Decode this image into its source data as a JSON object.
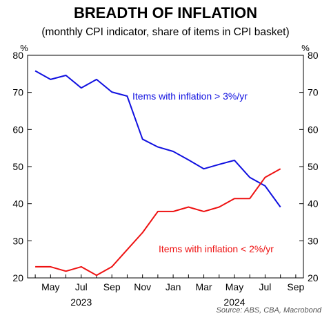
{
  "chart_data": {
    "type": "line",
    "title": "BREADTH OF INFLATION",
    "subtitle": "(monthly CPI indicator, share of items in CPI basket)",
    "y_unit": "%",
    "ylim": [
      20,
      80
    ],
    "yticks": [
      20,
      30,
      40,
      50,
      60,
      70,
      80
    ],
    "x": [
      "2023-04",
      "2023-05",
      "2023-06",
      "2023-07",
      "2023-08",
      "2023-09",
      "2023-10",
      "2023-11",
      "2023-12",
      "2024-01",
      "2024-02",
      "2024-03",
      "2024-04",
      "2024-05",
      "2024-06",
      "2024-07",
      "2024-08"
    ],
    "xlim": [
      "2023-04",
      "2024-09"
    ],
    "xticks": [
      {
        "month": "2023-05",
        "label": "May"
      },
      {
        "month": "2023-07",
        "label": "Jul"
      },
      {
        "month": "2023-09",
        "label": "Sep"
      },
      {
        "month": "2023-11",
        "label": "Nov"
      },
      {
        "month": "2024-01",
        "label": "Jan"
      },
      {
        "month": "2024-03",
        "label": "Mar"
      },
      {
        "month": "2024-05",
        "label": "May"
      },
      {
        "month": "2024-07",
        "label": "Jul"
      },
      {
        "month": "2024-09",
        "label": "Sep"
      }
    ],
    "year_labels": [
      {
        "month": "2023-07",
        "label": "2023"
      },
      {
        "month": "2024-05",
        "label": "2024"
      }
    ],
    "series": [
      {
        "name": "Items with inflation > 3%/yr",
        "color": "#1010e0",
        "values": [
          75.8,
          73.5,
          74.6,
          71.2,
          73.5,
          70.1,
          69.0,
          57.4,
          55.3,
          54.1,
          51.8,
          49.4,
          50.6,
          51.7,
          47.1,
          44.8,
          39.1
        ]
      },
      {
        "name": "Items with inflation < 2%/yr",
        "color": "#ee1111",
        "values": [
          23.0,
          23.0,
          21.8,
          23.0,
          20.7,
          23.0,
          27.6,
          32.2,
          37.9,
          37.9,
          39.1,
          37.9,
          39.1,
          41.4,
          41.4,
          47.1,
          49.4
        ]
      }
    ],
    "annotations": [
      {
        "text": "Items with inflation > 3%/yr",
        "series": 0
      },
      {
        "text": "Items with inflation < 2%/yr",
        "series": 1
      }
    ],
    "grid": false,
    "source": "Source: ABS, CBA, Macrobond"
  }
}
